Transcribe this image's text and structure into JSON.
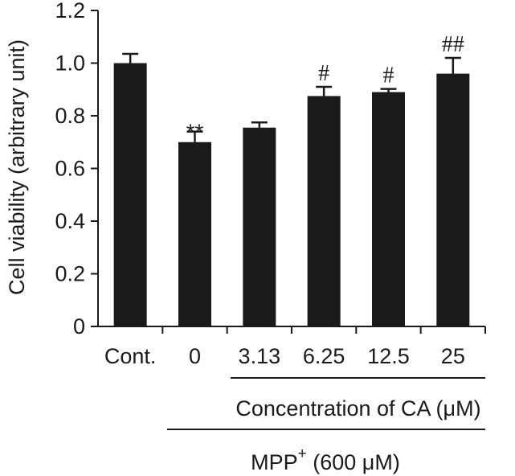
{
  "chart_data": {
    "type": "bar",
    "categories": [
      "Cont.",
      "0",
      "3.13",
      "6.25",
      "12.5",
      "25"
    ],
    "values": [
      1.0,
      0.7,
      0.755,
      0.875,
      0.89,
      0.96
    ],
    "errors": [
      0.035,
      0.04,
      0.02,
      0.035,
      0.012,
      0.06
    ],
    "significance": [
      "",
      "**",
      "",
      "#",
      "#",
      "##"
    ],
    "ylabel": "Cell viability (arbitrary unit)",
    "ylim": [
      0,
      1.2
    ],
    "yticks": [
      0,
      0.2,
      0.4,
      0.6,
      0.8,
      1.0,
      1.2
    ],
    "ytick_labels": [
      "0",
      "0.2",
      "0.4",
      "0.6",
      "0.8",
      "1.0",
      "1.2"
    ],
    "group_labels": {
      "concentration": "Concentration of CA (μM)",
      "mpp_base": "MPP",
      "mpp_sup": "+",
      "mpp_rest": " (600 μM)"
    },
    "colors": {
      "bar": "#1a1a1a",
      "axis": "#1a1a1a"
    }
  }
}
